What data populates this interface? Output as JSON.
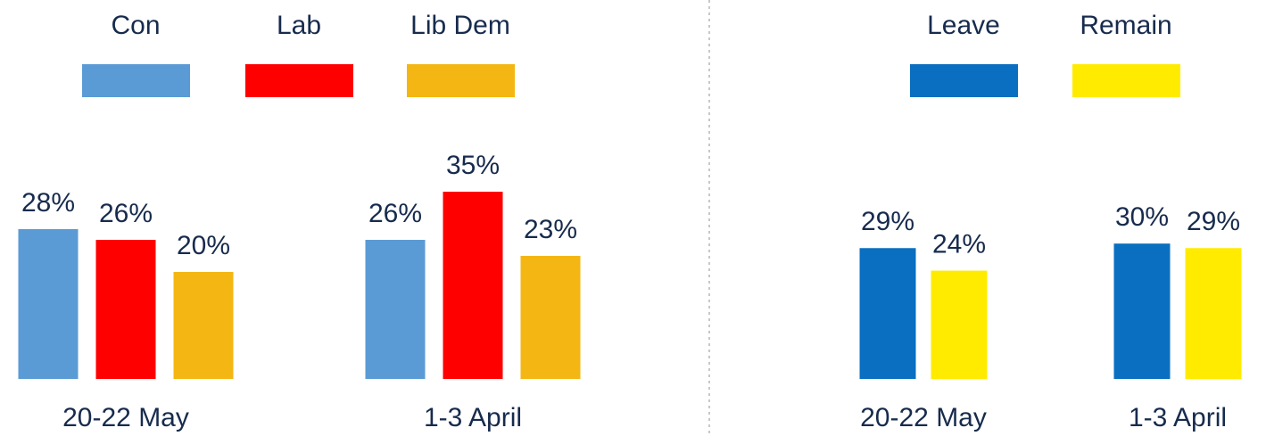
{
  "chart_data": [
    {
      "type": "bar",
      "categories": [
        "20-22 May",
        "1-3 April"
      ],
      "series": [
        {
          "name": "Con",
          "color": "#5b9bd5",
          "values": [
            28,
            26
          ],
          "value_labels": [
            "28%",
            "26%"
          ]
        },
        {
          "name": "Lab",
          "color": "#ff0000",
          "values": [
            26,
            35
          ],
          "value_labels": [
            "26%",
            "35%"
          ]
        },
        {
          "name": "Lib Dem",
          "color": "#f4b612",
          "values": [
            20,
            23
          ],
          "value_labels": [
            "20%",
            "23%"
          ]
        }
      ],
      "ylim": [
        0,
        70
      ]
    },
    {
      "type": "bar",
      "categories": [
        "20-22 May",
        "1-3 April"
      ],
      "series": [
        {
          "name": "Leave",
          "color": "#0a6fc0",
          "values": [
            29,
            30
          ],
          "value_labels": [
            "29%",
            "30%"
          ]
        },
        {
          "name": "Remain",
          "color": "#ffeb00",
          "values": [
            24,
            29
          ],
          "value_labels": [
            "24%",
            "29%"
          ]
        }
      ],
      "ylim": [
        0,
        83
      ]
    }
  ]
}
